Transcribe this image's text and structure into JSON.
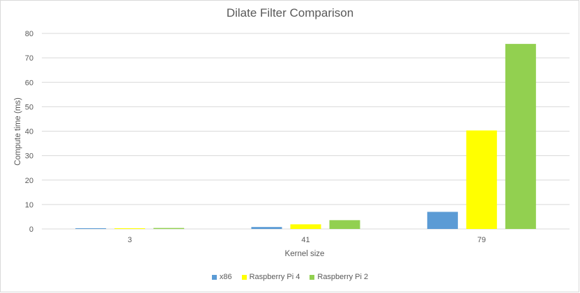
{
  "chart_data": {
    "type": "bar",
    "title": "Dilate Filter Comparison",
    "xlabel": "Kernel size",
    "ylabel": "Compute time (ms)",
    "categories": [
      "3",
      "41",
      "79"
    ],
    "ylim": [
      0,
      80
    ],
    "yticks": [
      0,
      10,
      20,
      30,
      40,
      50,
      60,
      70,
      80
    ],
    "grid": true,
    "legend_position": "bottom",
    "series": [
      {
        "name": "x86",
        "color": "#5b9bd5",
        "values": [
          0.3,
          0.8,
          7.0
        ]
      },
      {
        "name": "Raspberry Pi 4",
        "color": "#ffff00",
        "values": [
          0.3,
          1.9,
          40.3
        ]
      },
      {
        "name": "Raspberry Pi 2",
        "color": "#92d050",
        "values": [
          0.4,
          3.6,
          75.7
        ]
      }
    ]
  }
}
